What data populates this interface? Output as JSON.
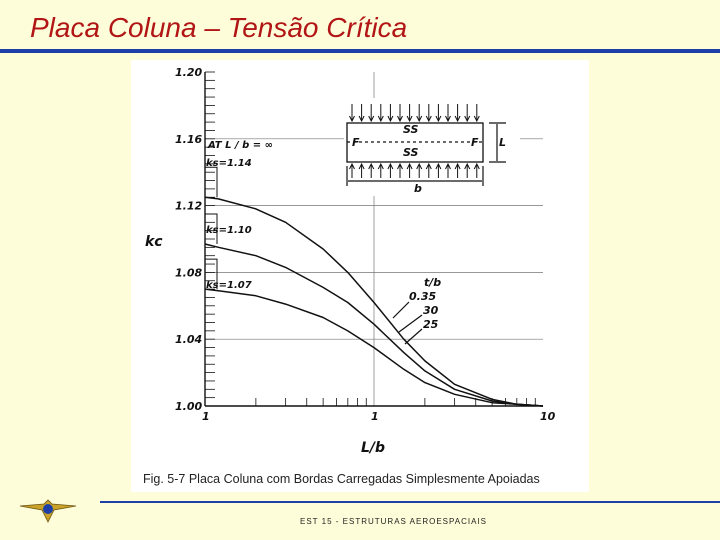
{
  "slide": {
    "title": "Placa Coluna – Tensão Crítica",
    "footer": "EST 15  -  ESTRUTURAS AEROESPACIAIS",
    "colors": {
      "title": "#b11515",
      "rule": "#1e3fa8",
      "background": "#fefdd9"
    }
  },
  "figure": {
    "caption": "Fig. 5-7  Placa Coluna com Bordas Carregadas Simplesmente Apoiadas",
    "inset": {
      "center_top_label": "SS",
      "center_bottom_label": "SS",
      "left_edge_label": "F",
      "right_edge_label": "F",
      "length_label": "L",
      "width_label": "b"
    },
    "limit_note": "AT L / b = ∞",
    "legend_header": "t/b"
  },
  "chart_data": {
    "type": "line",
    "xlabel": "L/b",
    "ylabel": "kc",
    "xscale": "log",
    "xlim": [
      0.1,
      10
    ],
    "ylim": [
      1.0,
      1.2
    ],
    "x_ticks": [
      "1",
      "1",
      "10"
    ],
    "y_ticks": [
      "1.20",
      "1.16",
      "1.12",
      "1.08",
      "1.04",
      "1.00"
    ],
    "y_tick_values": [
      1.2,
      1.16,
      1.12,
      1.08,
      1.04,
      1.0
    ],
    "grid": true,
    "series": [
      {
        "name": "0.35",
        "limit_label": "ks=1.14",
        "x": [
          0.1,
          0.12,
          0.2,
          0.3,
          0.5,
          0.7,
          1.0,
          1.5,
          2,
          3,
          5,
          7,
          10
        ],
        "y": [
          1.125,
          1.124,
          1.118,
          1.11,
          1.094,
          1.08,
          1.062,
          1.04,
          1.027,
          1.013,
          1.004,
          1.001,
          1.0
        ]
      },
      {
        "name": "30",
        "limit_label": "ks=1.10",
        "x": [
          0.1,
          0.12,
          0.2,
          0.3,
          0.5,
          0.7,
          1.0,
          1.5,
          2,
          3,
          5,
          7,
          10
        ],
        "y": [
          1.097,
          1.095,
          1.09,
          1.083,
          1.071,
          1.062,
          1.049,
          1.032,
          1.021,
          1.01,
          1.003,
          1.001,
          1.0
        ]
      },
      {
        "name": "25",
        "limit_label": "ks=1.07",
        "x": [
          0.1,
          0.12,
          0.2,
          0.3,
          0.5,
          0.7,
          1.0,
          1.5,
          2,
          3,
          5,
          7,
          10
        ],
        "y": [
          1.07,
          1.069,
          1.066,
          1.061,
          1.053,
          1.045,
          1.035,
          1.022,
          1.014,
          1.007,
          1.002,
          1.001,
          1.0
        ]
      }
    ]
  }
}
